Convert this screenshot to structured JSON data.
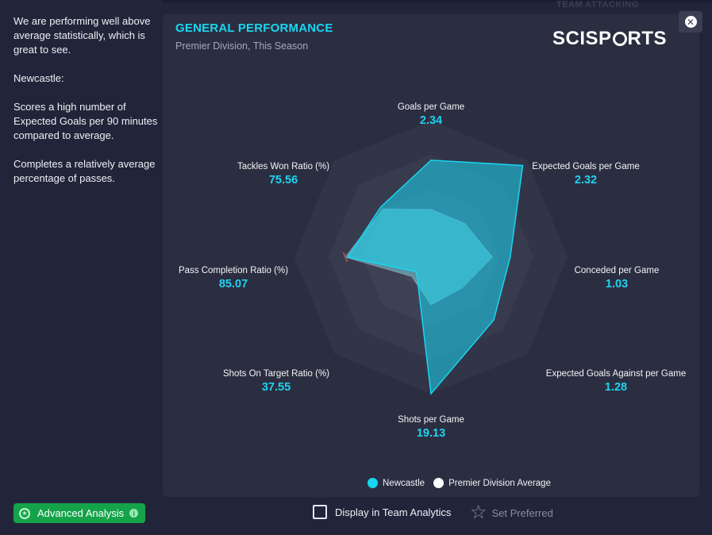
{
  "summary": {
    "paragraphs": [
      "We are performing well above average statistically, which is great to see.",
      "Newcastle:",
      "Scores a high number of Expected Goals per 90 minutes compared to average.",
      "Completes a relatively average percentage of passes."
    ]
  },
  "background_header_fragment": "TEAM ATTACKING",
  "card": {
    "title": "GENERAL PERFORMANCE",
    "subtitle": "Premier Division, This Season",
    "brand": "SCISPORTS",
    "close_icon": "close-circle-icon"
  },
  "chart_data": {
    "type": "radar",
    "axes": [
      {
        "label": "Goals per Game",
        "value": "2.34"
      },
      {
        "label": "Expected Goals per Game",
        "value": "2.32"
      },
      {
        "label": "Conceded per Game",
        "value": "1.03"
      },
      {
        "label": "Expected Goals Against per Game",
        "value": "1.28"
      },
      {
        "label": "Shots per Game",
        "value": "19.13"
      },
      {
        "label": "Shots On Target Ratio (%)",
        "value": "37.55"
      },
      {
        "label": "Pass Completion Ratio (%)",
        "value": "85.07"
      },
      {
        "label": "Tackles Won Ratio (%)",
        "value": "75.56"
      }
    ],
    "series": [
      {
        "name": "Newcastle",
        "color": "#19d6f1",
        "relative": [
          0.71,
          0.95,
          0.58,
          0.65,
          1.0,
          0.15,
          0.61,
          0.52
        ]
      },
      {
        "name": "Premier Division Average",
        "color": "#ffffff",
        "relative": [
          0.35,
          0.35,
          0.45,
          0.32,
          0.35,
          0.2,
          0.63,
          0.5
        ]
      }
    ],
    "rings": 4,
    "legend_position": "bottom"
  },
  "legend": {
    "items": [
      {
        "label": "Newcastle",
        "color": "#19d6f1"
      },
      {
        "label": "Premier Division Average",
        "color": "#ffffff"
      }
    ]
  },
  "footer": {
    "advanced_label": "Advanced Analysis",
    "display_label": "Display in Team Analytics",
    "preferred_label": "Set Preferred"
  }
}
